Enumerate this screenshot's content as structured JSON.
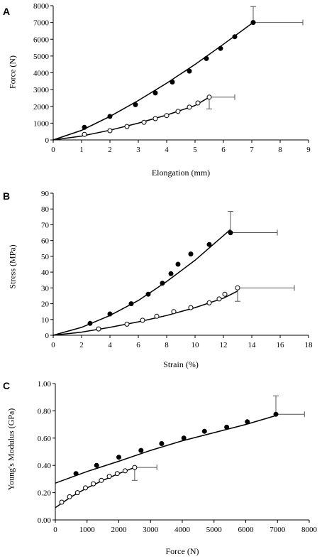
{
  "chart_data": [
    {
      "panel_label": "A",
      "type": "scatter",
      "xlabel": "Elongation (mm)",
      "ylabel": "Force (N)",
      "xlim": [
        0,
        9
      ],
      "ylim": [
        0,
        8000
      ],
      "x_ticks": [
        0,
        1,
        2,
        3,
        4,
        5,
        6,
        7,
        8,
        9
      ],
      "y_ticks": [
        0,
        1000,
        2000,
        3000,
        4000,
        5000,
        6000,
        7000,
        8000
      ],
      "x_tick_labels": [
        "0",
        "1",
        "2",
        "3",
        "4",
        "5",
        "6",
        "7",
        "8",
        "9"
      ],
      "y_tick_labels": [
        "0",
        "1000",
        "2000",
        "3000",
        "4000",
        "5000",
        "6000",
        "7000",
        "8000"
      ],
      "series": [
        {
          "marker": "filled",
          "x": [
            1.1,
            2.0,
            2.9,
            3.6,
            4.2,
            4.8,
            5.4,
            5.9,
            6.4,
            7.05
          ],
          "y": [
            750,
            1400,
            2100,
            2800,
            3450,
            4100,
            4850,
            5450,
            6150,
            7000
          ],
          "fit": [
            [
              0,
              0
            ],
            [
              1,
              570
            ],
            [
              2,
              1400
            ],
            [
              3,
              2350
            ],
            [
              4,
              3380
            ],
            [
              5,
              4500
            ],
            [
              6,
              5700
            ],
            [
              7.05,
              7000
            ]
          ],
          "error_x": [
            7.05,
            8.8
          ],
          "error_y": [
            7000,
            7950
          ]
        },
        {
          "marker": "open",
          "x": [
            1.1,
            2.0,
            2.6,
            3.2,
            3.6,
            4.0,
            4.4,
            4.8,
            5.1,
            5.5
          ],
          "y": [
            330,
            550,
            800,
            1050,
            1270,
            1450,
            1700,
            1950,
            2200,
            2550
          ],
          "fit": [
            [
              0,
              0
            ],
            [
              1,
              230
            ],
            [
              2,
              580
            ],
            [
              3,
              1000
            ],
            [
              4,
              1480
            ],
            [
              5,
              2050
            ],
            [
              5.5,
              2550
            ]
          ],
          "error_x": [
            5.5,
            6.4
          ],
          "error_y": [
            1850,
            2550
          ]
        }
      ]
    },
    {
      "panel_label": "B",
      "type": "scatter",
      "xlabel": "Strain (%)",
      "ylabel": "Stress (MPa)",
      "xlim": [
        0,
        18
      ],
      "ylim": [
        0,
        90
      ],
      "x_ticks": [
        0,
        2,
        4,
        6,
        8,
        10,
        12,
        14,
        16,
        18
      ],
      "y_ticks": [
        0,
        10,
        20,
        30,
        40,
        50,
        60,
        70,
        80,
        90
      ],
      "x_tick_labels": [
        "0",
        "2",
        "4",
        "6",
        "8",
        "10",
        "12",
        "14",
        "16",
        "18"
      ],
      "y_tick_labels": [
        "0",
        "10",
        "20",
        "30",
        "40",
        "50",
        "60",
        "70",
        "80",
        "90"
      ],
      "series": [
        {
          "marker": "filled",
          "x": [
            2.6,
            4.0,
            5.5,
            6.7,
            7.7,
            8.3,
            8.8,
            9.7,
            11.0,
            12.5
          ],
          "y": [
            7.5,
            13.5,
            20,
            26,
            33,
            39,
            45,
            51.5,
            57.5,
            65
          ],
          "fit": [
            [
              0,
              0
            ],
            [
              2,
              5
            ],
            [
              4,
              12.5
            ],
            [
              6,
              22
            ],
            [
              8,
              34
            ],
            [
              10,
              47.5
            ],
            [
              12.5,
              67
            ]
          ],
          "error_x": [
            12.5,
            15.8
          ],
          "error_y": [
            65,
            78.5
          ]
        },
        {
          "marker": "open",
          "x": [
            3.2,
            5.2,
            6.3,
            7.3,
            8.5,
            9.7,
            11.0,
            11.7,
            12.1,
            13.0
          ],
          "y": [
            4,
            7,
            9.5,
            12,
            15,
            17.5,
            20.5,
            23,
            26,
            30
          ],
          "fit": [
            [
              0,
              0
            ],
            [
              2,
              2
            ],
            [
              4,
              5
            ],
            [
              6,
              8.5
            ],
            [
              8,
              12.5
            ],
            [
              10,
              17.5
            ],
            [
              12,
              23.5
            ],
            [
              13,
              28
            ]
          ],
          "error_x": [
            13.0,
            17.0
          ],
          "error_y": [
            21.5,
            30
          ]
        }
      ]
    },
    {
      "panel_label": "C",
      "type": "scatter",
      "xlabel": "Force (N)",
      "ylabel": "Young's Modulus (GPa)",
      "xlim": [
        0,
        8000
      ],
      "ylim": [
        0,
        1
      ],
      "x_ticks": [
        0,
        1000,
        2000,
        3000,
        4000,
        5000,
        6000,
        7000,
        8000
      ],
      "y_ticks": [
        0,
        0.2,
        0.4,
        0.6,
        0.8,
        1.0
      ],
      "x_tick_labels": [
        "0",
        "1000",
        "2000",
        "3000",
        "4000",
        "5000",
        "6000",
        "7000",
        "8000"
      ],
      "y_tick_labels": [
        "0.00",
        "0.20",
        "0.40",
        "0.60",
        "0.80",
        "1.00"
      ],
      "series": [
        {
          "marker": "filled",
          "x": [
            650,
            1300,
            2000,
            2700,
            3350,
            4050,
            4700,
            5400,
            6050,
            6950
          ],
          "y": [
            0.34,
            0.4,
            0.46,
            0.51,
            0.56,
            0.6,
            0.65,
            0.68,
            0.72,
            0.775
          ],
          "fit": [
            [
              0,
              0.27
            ],
            [
              1000,
              0.355
            ],
            [
              2000,
              0.43
            ],
            [
              3000,
              0.51
            ],
            [
              4000,
              0.58
            ],
            [
              5000,
              0.64
            ],
            [
              6000,
              0.7
            ],
            [
              6950,
              0.765
            ]
          ],
          "error_x": [
            6950,
            7850
          ],
          "error_y": [
            0.775,
            0.91
          ]
        },
        {
          "marker": "open",
          "x": [
            200,
            450,
            700,
            950,
            1200,
            1450,
            1700,
            1950,
            2200,
            2500
          ],
          "y": [
            0.13,
            0.17,
            0.2,
            0.235,
            0.265,
            0.29,
            0.32,
            0.34,
            0.36,
            0.385
          ],
          "fit": [
            [
              0,
              0.09
            ],
            [
              500,
              0.17
            ],
            [
              1000,
              0.235
            ],
            [
              1500,
              0.29
            ],
            [
              2000,
              0.34
            ],
            [
              2500,
              0.385
            ]
          ],
          "error_x": [
            2500,
            3200
          ],
          "error_y": [
            0.29,
            0.385
          ]
        }
      ]
    }
  ]
}
